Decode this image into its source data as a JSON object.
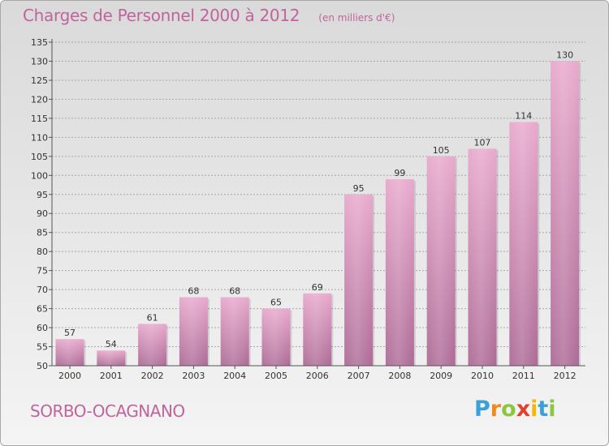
{
  "title": "Charges de Personnel 2000 à 2012",
  "subtitle": "(en milliers d'€)",
  "commune": "SORBO-OCAGNANO",
  "logo": {
    "letters": [
      "P",
      "r",
      "o",
      "x",
      "i",
      "t",
      "i"
    ],
    "colors": [
      "#3aa0d8",
      "#f08a1c",
      "#8cc63f",
      "#e0422f",
      "#f5b800",
      "#3aa0d8",
      "#8cc63f"
    ]
  },
  "colors": {
    "title": "#c0649c",
    "bar_top": "#e8a8cc",
    "bar_bottom": "#ad6a96",
    "grid": "#a8a8a8",
    "axis": "#555555"
  },
  "chart_data": {
    "type": "bar",
    "title": "Charges de Personnel 2000 à 2012",
    "subtitle": "(en milliers d'€)",
    "categories": [
      "2000",
      "2001",
      "2002",
      "2003",
      "2004",
      "2005",
      "2006",
      "2007",
      "2008",
      "2009",
      "2010",
      "2011",
      "2012"
    ],
    "values": [
      57,
      54,
      61,
      68,
      68,
      65,
      69,
      95,
      99,
      105,
      107,
      114,
      130
    ],
    "ylim": [
      50,
      135
    ],
    "yticks": [
      50,
      55,
      60,
      65,
      70,
      75,
      80,
      85,
      90,
      95,
      100,
      105,
      110,
      115,
      120,
      125,
      130,
      135
    ],
    "grid": true,
    "data_labels": true
  }
}
